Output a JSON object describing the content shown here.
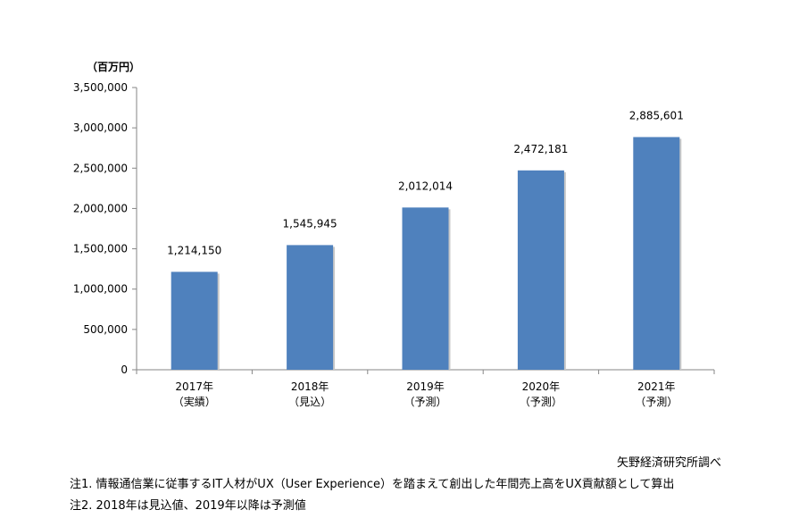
{
  "chart_data": {
    "type": "bar",
    "unit_label": "（百万円）",
    "categories": [
      {
        "year": "2017年",
        "status": "（実績）"
      },
      {
        "year": "2018年",
        "status": "（見込）"
      },
      {
        "year": "2019年",
        "status": "（予測）"
      },
      {
        "year": "2020年",
        "status": "（予測）"
      },
      {
        "year": "2021年",
        "status": "（予測）"
      }
    ],
    "values": [
      1214150,
      1545945,
      2012014,
      2472181,
      2885601
    ],
    "value_labels": [
      "1,214,150",
      "1,545,945",
      "2,012,014",
      "2,472,181",
      "2,885,601"
    ],
    "yticks": [
      0,
      500000,
      1000000,
      1500000,
      2000000,
      2500000,
      3000000,
      3500000
    ],
    "ytick_labels": [
      "0",
      "500,000",
      "1,000,000",
      "1,500,000",
      "2,000,000",
      "2,500,000",
      "3,000,000",
      "3,500,000"
    ],
    "ylim": [
      0,
      3500000
    ],
    "bar_color": "#4f81bd",
    "grid": false
  },
  "source": "矢野経済研究所調べ",
  "notes": [
    "注1. 情報通信業に従事するIT人材がUX（User Experience）を踏まえて創出した年間売上高をUX貢献額として算出",
    "注2. 2018年は見込値、2019年以降は予測値"
  ]
}
